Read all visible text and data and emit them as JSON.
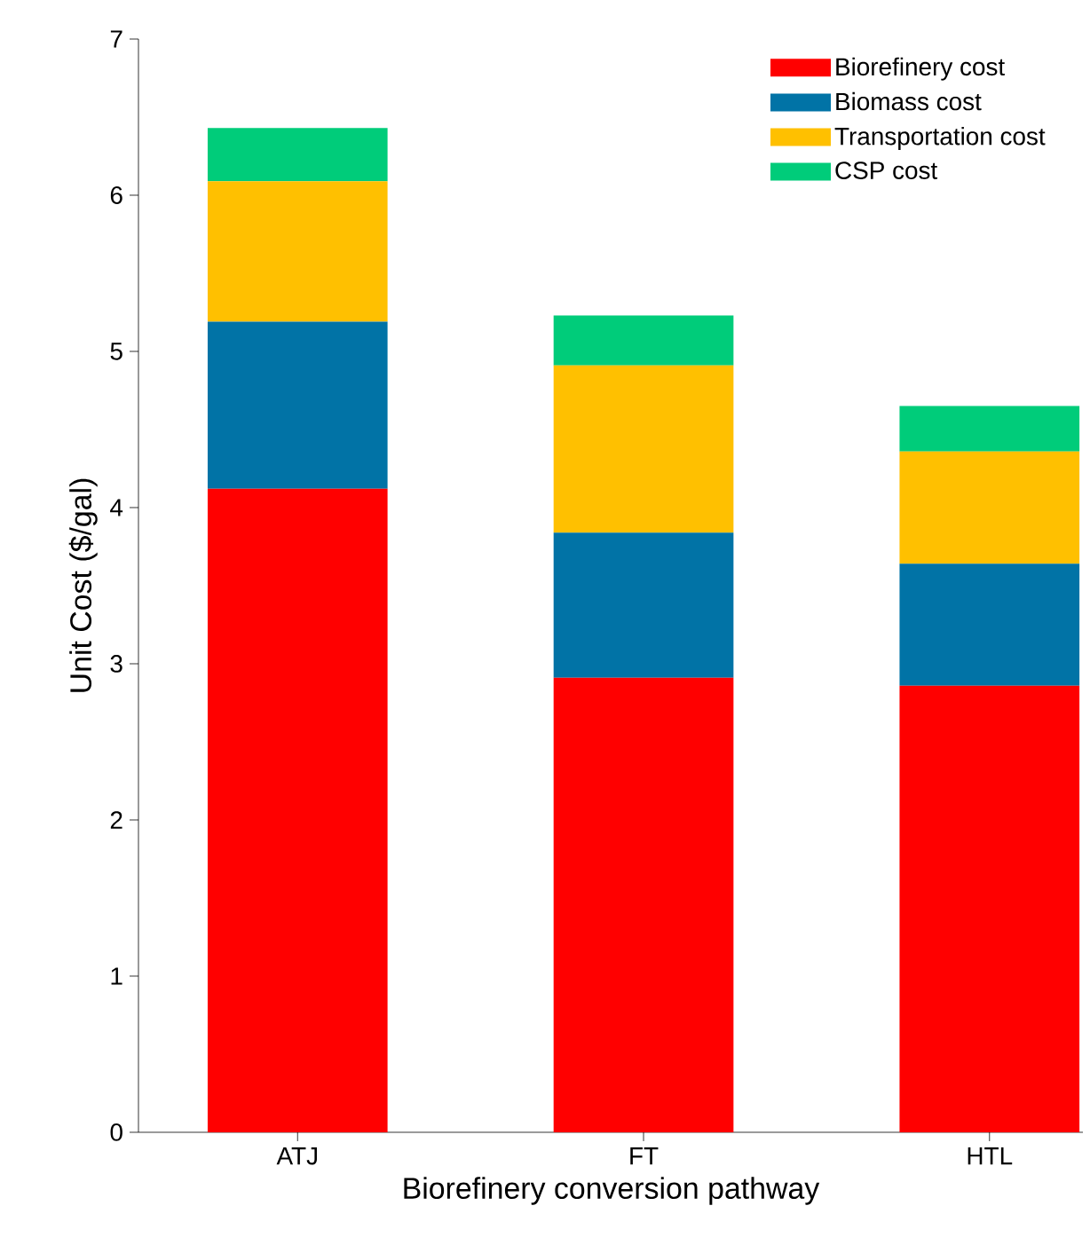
{
  "chart_data": {
    "type": "bar",
    "stacked": true,
    "xlabel": "Biorefinery conversion pathway",
    "ylabel": "Unit Cost ($/gal)",
    "categories": [
      "ATJ",
      "FT",
      "HTL"
    ],
    "series": [
      {
        "name": "Biorefinery cost",
        "color": "#ff0000",
        "values": [
          4.12,
          2.91,
          2.86
        ]
      },
      {
        "name": "Biomass cost",
        "color": "#0173a6",
        "values": [
          1.07,
          0.93,
          0.78
        ]
      },
      {
        "name": "Transportation cost",
        "color": "#ffc000",
        "values": [
          0.9,
          1.07,
          0.72
        ]
      },
      {
        "name": "CSP cost",
        "color": "#00cc7a",
        "values": [
          0.34,
          0.32,
          0.29
        ]
      }
    ],
    "ylim": [
      0,
      7
    ],
    "yticks": [
      0,
      1,
      2,
      3,
      4,
      5,
      6,
      7
    ],
    "grid": false,
    "legend": "top right"
  }
}
